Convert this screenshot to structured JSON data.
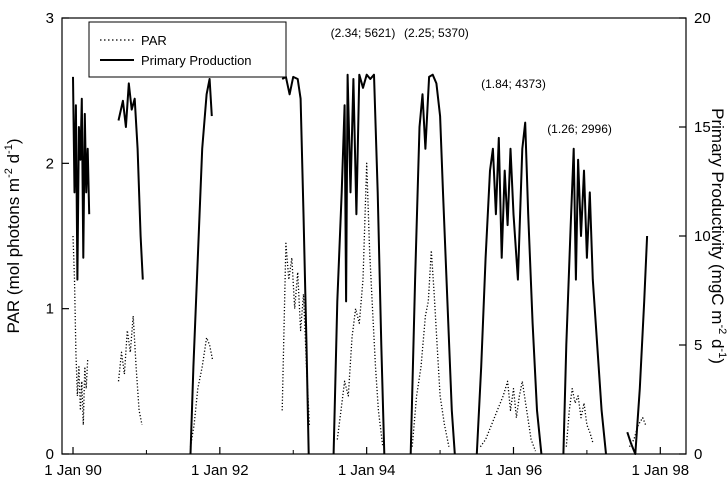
{
  "chart_data": {
    "type": "line",
    "title": "",
    "x_axis": {
      "tick_labels": [
        "1 Jan 90",
        "1 Jan 92",
        "1 Jan 94",
        "1 Jan 96",
        "1 Jan 98"
      ],
      "tick_years": [
        1990,
        1992,
        1994,
        1996,
        1998
      ],
      "range": [
        1989.85,
        1998.35
      ]
    },
    "y_left": {
      "label": "PAR (mol photons m<sup>-2</sup> d<sup>-1</sup>)",
      "label_main": "PAR (mol photons m",
      "label_sup1": "-2",
      "label_mid": " d",
      "label_sup2": "-1",
      "label_end": ")",
      "range": [
        0,
        3
      ],
      "ticks": [
        0,
        1,
        2,
        3
      ]
    },
    "y_right": {
      "label_main": "Primary Productivity (mgC m",
      "label_sup1": "-2",
      "label_mid": " d",
      "label_sup2": "-1",
      "label_end": ")",
      "range": [
        0,
        20
      ],
      "ticks": [
        0,
        5,
        10,
        15,
        20
      ]
    },
    "legend": {
      "placement": "top-left",
      "entries": [
        {
          "name": "PAR",
          "style": "dotted"
        },
        {
          "name": "Primary Production",
          "style": "solid"
        }
      ]
    },
    "annotations": [
      {
        "text": "(2.34; 5621)",
        "x": 1993.95,
        "y": 2.87
      },
      {
        "text": "(2.25; 5370)",
        "x": 1994.95,
        "y": 2.87
      },
      {
        "text": "(1.84; 4373)",
        "x": 1996.0,
        "y": 2.52
      },
      {
        "text": "(1.26; 2996)",
        "x": 1996.9,
        "y": 2.21
      }
    ],
    "series": [
      {
        "name": "Primary Production",
        "axis": "right",
        "segments": [
          [
            [
              1990.0,
              17.3
            ],
            [
              1990.02,
              12
            ],
            [
              1990.04,
              16
            ],
            [
              1990.06,
              8
            ],
            [
              1990.08,
              15
            ],
            [
              1990.1,
              13.5
            ],
            [
              1990.12,
              16.3
            ],
            [
              1990.14,
              9
            ],
            [
              1990.16,
              15.6
            ],
            [
              1990.18,
              12
            ],
            [
              1990.2,
              14
            ],
            [
              1990.22,
              11
            ]
          ],
          [
            [
              1990.62,
              15.3
            ],
            [
              1990.68,
              16.2
            ],
            [
              1990.72,
              15
            ],
            [
              1990.76,
              17
            ],
            [
              1990.8,
              15.8
            ],
            [
              1990.84,
              16.3
            ],
            [
              1990.88,
              14
            ],
            [
              1990.92,
              10
            ],
            [
              1990.95,
              8
            ]
          ],
          [
            [
              1991.6,
              0
            ],
            [
              1991.64,
              4
            ],
            [
              1991.7,
              9
            ],
            [
              1991.76,
              14
            ],
            [
              1991.82,
              16.5
            ],
            [
              1991.86,
              17.2
            ],
            [
              1991.89,
              15.5
            ]
          ],
          [
            [
              1992.85,
              17.2
            ],
            [
              1992.9,
              17.3
            ],
            [
              1992.95,
              16.5
            ],
            [
              1993.0,
              17.3
            ],
            [
              1993.06,
              17.2
            ],
            [
              1993.1,
              16.3
            ],
            [
              1993.14,
              11
            ],
            [
              1993.18,
              5
            ],
            [
              1993.21,
              0
            ]
          ],
          [
            [
              1993.55,
              0
            ],
            [
              1993.6,
              7
            ],
            [
              1993.66,
              12
            ],
            [
              1993.7,
              16
            ],
            [
              1993.72,
              7
            ],
            [
              1993.74,
              17.4
            ],
            [
              1993.78,
              12
            ],
            [
              1993.82,
              17.2
            ],
            [
              1993.86,
              11
            ],
            [
              1993.9,
              17.4
            ],
            [
              1993.95,
              16.8
            ],
            [
              1994.0,
              17.4
            ],
            [
              1994.05,
              17.2
            ],
            [
              1994.1,
              17.4
            ],
            [
              1994.15,
              12
            ],
            [
              1994.2,
              5
            ],
            [
              1994.24,
              0
            ]
          ],
          [
            [
              1994.6,
              0
            ],
            [
              1994.66,
              8
            ],
            [
              1994.72,
              15
            ],
            [
              1994.76,
              16.5
            ],
            [
              1994.8,
              14
            ],
            [
              1994.85,
              17.3
            ],
            [
              1994.9,
              17.4
            ],
            [
              1994.95,
              17.0
            ],
            [
              1995.0,
              15.5
            ],
            [
              1995.04,
              12
            ],
            [
              1995.1,
              7
            ],
            [
              1995.16,
              2
            ],
            [
              1995.2,
              0
            ]
          ],
          [
            [
              1995.5,
              0
            ],
            [
              1995.56,
              4
            ],
            [
              1995.62,
              9
            ],
            [
              1995.68,
              13
            ],
            [
              1995.72,
              14
            ],
            [
              1995.76,
              11
            ],
            [
              1995.8,
              14.5
            ],
            [
              1995.84,
              9
            ],
            [
              1995.88,
              13
            ],
            [
              1995.92,
              10.5
            ],
            [
              1995.96,
              14
            ],
            [
              1996.0,
              11
            ],
            [
              1996.06,
              8
            ],
            [
              1996.12,
              14
            ],
            [
              1996.16,
              15.2
            ],
            [
              1996.2,
              11
            ],
            [
              1996.26,
              6
            ],
            [
              1996.32,
              2
            ],
            [
              1996.38,
              0
            ]
          ],
          [
            [
              1996.68,
              0
            ],
            [
              1996.72,
              5
            ],
            [
              1996.78,
              10.5
            ],
            [
              1996.82,
              14
            ],
            [
              1996.85,
              8
            ],
            [
              1996.88,
              13.5
            ],
            [
              1996.92,
              10
            ],
            [
              1996.96,
              13
            ],
            [
              1997.0,
              9
            ],
            [
              1997.04,
              12
            ],
            [
              1997.08,
              8
            ],
            [
              1997.14,
              5
            ],
            [
              1997.2,
              2
            ],
            [
              1997.26,
              0
            ]
          ],
          [
            [
              1997.55,
              1
            ],
            [
              1997.6,
              0.5
            ],
            [
              1997.66,
              0
            ],
            [
              1997.72,
              3
            ],
            [
              1997.78,
              7
            ],
            [
              1997.82,
              10
            ]
          ]
        ]
      },
      {
        "name": "PAR",
        "axis": "left",
        "segments": [
          [
            [
              1990.0,
              1.5
            ],
            [
              1990.02,
              1.2
            ],
            [
              1990.04,
              0.7
            ],
            [
              1990.06,
              0.4
            ],
            [
              1990.08,
              0.6
            ],
            [
              1990.1,
              0.3
            ],
            [
              1990.12,
              0.5
            ],
            [
              1990.14,
              0.2
            ],
            [
              1990.16,
              0.6
            ],
            [
              1990.18,
              0.45
            ],
            [
              1990.2,
              0.65
            ]
          ],
          [
            [
              1990.62,
              0.5
            ],
            [
              1990.66,
              0.7
            ],
            [
              1990.7,
              0.55
            ],
            [
              1990.74,
              0.85
            ],
            [
              1990.78,
              0.7
            ],
            [
              1990.82,
              0.95
            ],
            [
              1990.86,
              0.6
            ],
            [
              1990.9,
              0.3
            ],
            [
              1990.94,
              0.2
            ]
          ],
          [
            [
              1991.6,
              0.05
            ],
            [
              1991.65,
              0.2
            ],
            [
              1991.7,
              0.45
            ],
            [
              1991.76,
              0.6
            ],
            [
              1991.82,
              0.8
            ],
            [
              1991.86,
              0.75
            ],
            [
              1991.9,
              0.65
            ]
          ],
          [
            [
              1992.85,
              0.3
            ],
            [
              1992.9,
              1.45
            ],
            [
              1992.94,
              1.2
            ],
            [
              1992.98,
              1.35
            ],
            [
              1993.02,
              1.0
            ],
            [
              1993.06,
              1.25
            ],
            [
              1993.1,
              0.85
            ],
            [
              1993.14,
              1.1
            ],
            [
              1993.18,
              0.6
            ],
            [
              1993.22,
              0.2
            ]
          ],
          [
            [
              1993.6,
              0.1
            ],
            [
              1993.65,
              0.3
            ],
            [
              1993.7,
              0.5
            ],
            [
              1993.75,
              0.4
            ],
            [
              1993.8,
              0.8
            ],
            [
              1993.85,
              1.0
            ],
            [
              1993.9,
              0.9
            ],
            [
              1993.95,
              1.2
            ],
            [
              1994.0,
              2.0
            ],
            [
              1994.04,
              1.4
            ],
            [
              1994.08,
              1.0
            ],
            [
              1994.12,
              0.6
            ],
            [
              1994.16,
              0.3
            ],
            [
              1994.22,
              0.05
            ]
          ],
          [
            [
              1994.62,
              0.05
            ],
            [
              1994.68,
              0.4
            ],
            [
              1994.74,
              0.6
            ],
            [
              1994.8,
              0.95
            ],
            [
              1994.84,
              1.05
            ],
            [
              1994.88,
              1.4
            ],
            [
              1994.92,
              1.1
            ],
            [
              1994.96,
              0.75
            ],
            [
              1995.0,
              0.4
            ],
            [
              1995.06,
              0.2
            ],
            [
              1995.12,
              0.05
            ]
          ],
          [
            [
              1995.55,
              0.05
            ],
            [
              1995.62,
              0.1
            ],
            [
              1995.7,
              0.2
            ],
            [
              1995.78,
              0.3
            ],
            [
              1995.86,
              0.4
            ],
            [
              1995.92,
              0.5
            ],
            [
              1995.96,
              0.3
            ],
            [
              1996.0,
              0.45
            ],
            [
              1996.04,
              0.25
            ],
            [
              1996.08,
              0.4
            ],
            [
              1996.12,
              0.5
            ],
            [
              1996.18,
              0.3
            ],
            [
              1996.24,
              0.1
            ],
            [
              1996.3,
              0.02
            ]
          ],
          [
            [
              1996.72,
              0.05
            ],
            [
              1996.76,
              0.3
            ],
            [
              1996.8,
              0.45
            ],
            [
              1996.84,
              0.35
            ],
            [
              1996.88,
              0.4
            ],
            [
              1996.92,
              0.25
            ],
            [
              1996.96,
              0.35
            ],
            [
              1997.0,
              0.2
            ],
            [
              1997.04,
              0.15
            ],
            [
              1997.08,
              0.08
            ]
          ],
          [
            [
              1997.58,
              0.05
            ],
            [
              1997.64,
              0.1
            ],
            [
              1997.7,
              0.2
            ],
            [
              1997.76,
              0.25
            ],
            [
              1997.8,
              0.2
            ]
          ]
        ]
      }
    ]
  }
}
